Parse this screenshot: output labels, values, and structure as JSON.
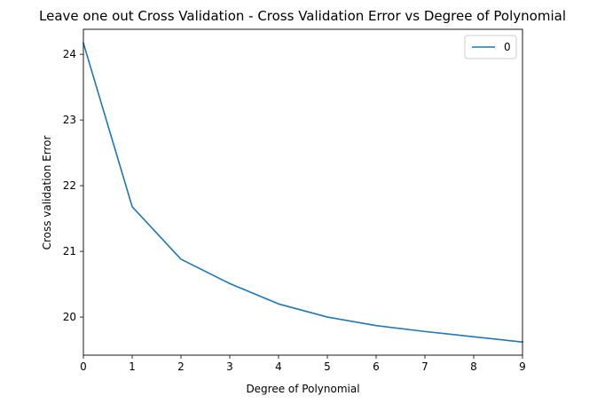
{
  "chart_data": {
    "type": "line",
    "title": "Leave one out Cross Validation - Cross Validation Error vs Degree of Polynomial",
    "xlabel": "Degree of Polynomial",
    "ylabel": "Cross validation Error",
    "xlim": [
      0,
      9
    ],
    "ylim": [
      19.42,
      24.38
    ],
    "x_ticks": [
      0,
      1,
      2,
      3,
      4,
      5,
      6,
      7,
      8,
      9
    ],
    "y_ticks": [
      20,
      21,
      22,
      23,
      24
    ],
    "grid": false,
    "legend_position": "top-right",
    "x": [
      0,
      1,
      2,
      3,
      4,
      5,
      6,
      7,
      8,
      9
    ],
    "series": [
      {
        "name": "0",
        "color": "#1f77b4",
        "values": [
          24.17,
          21.68,
          20.88,
          20.51,
          20.2,
          20.0,
          19.87,
          19.78,
          19.7,
          19.62
        ]
      }
    ]
  }
}
